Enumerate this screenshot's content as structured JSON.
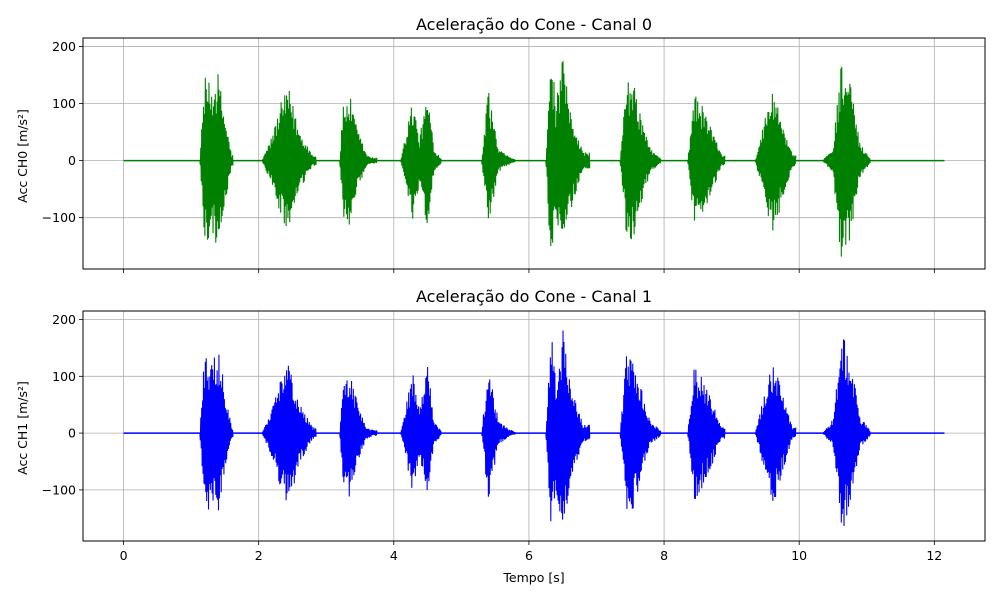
{
  "chart_data": [
    {
      "type": "line",
      "title": "Aceleração do Cone - Canal 0",
      "xlabel": "",
      "ylabel": "Acc CH0 [m/s²]",
      "color": "#008000",
      "grid": true,
      "xlim": [
        -0.6,
        12.75
      ],
      "ylim": [
        -190,
        215
      ],
      "x_ticks": [
        0,
        2,
        4,
        6,
        8,
        10,
        12
      ],
      "y_ticks": [
        -100,
        0,
        100,
        200
      ],
      "y_tick_labels": [
        "−100",
        "0",
        "100",
        "200"
      ],
      "series": [
        {
          "x_range": [
            0,
            12.15
          ],
          "bursts": [
            {
              "start": 1.13,
              "end": 1.62,
              "envelope": [
                [
                  1.13,
                  0
                ],
                [
                  1.2,
                  150
                ],
                [
                  1.3,
                  130
                ],
                [
                  1.4,
                  155
                ],
                [
                  1.5,
                  80
                ],
                [
                  1.6,
                  10
                ]
              ]
            },
            {
              "start": 2.05,
              "end": 2.85,
              "envelope": [
                [
                  2.05,
                  0
                ],
                [
                  2.2,
                  45
                ],
                [
                  2.35,
                  110
                ],
                [
                  2.45,
                  125
                ],
                [
                  2.6,
                  55
                ],
                [
                  2.8,
                  10
                ]
              ]
            },
            {
              "start": 3.2,
              "end": 3.75,
              "envelope": [
                [
                  3.2,
                  0
                ],
                [
                  3.25,
                  100
                ],
                [
                  3.35,
                  115
                ],
                [
                  3.45,
                  60
                ],
                [
                  3.6,
                  10
                ],
                [
                  3.7,
                  5
                ]
              ]
            },
            {
              "start": 4.1,
              "end": 4.7,
              "envelope": [
                [
                  4.1,
                  0
                ],
                [
                  4.28,
                  110
                ],
                [
                  4.38,
                  40
                ],
                [
                  4.5,
                  120
                ],
                [
                  4.6,
                  20
                ],
                [
                  4.7,
                  5
                ]
              ]
            },
            {
              "start": 5.3,
              "end": 5.8,
              "envelope": [
                [
                  5.3,
                  0
                ],
                [
                  5.4,
                  125
                ],
                [
                  5.45,
                  90
                ],
                [
                  5.55,
                  20
                ],
                [
                  5.7,
                  8
                ],
                [
                  5.8,
                  2
                ]
              ]
            },
            {
              "start": 6.25,
              "end": 6.9,
              "envelope": [
                [
                  6.25,
                  0
                ],
                [
                  6.33,
                  195
                ],
                [
                  6.4,
                  100
                ],
                [
                  6.5,
                  180
                ],
                [
                  6.6,
                  95
                ],
                [
                  6.8,
                  15
                ]
              ]
            },
            {
              "start": 7.35,
              "end": 7.95,
              "envelope": [
                [
                  7.35,
                  0
                ],
                [
                  7.45,
                  145
                ],
                [
                  7.55,
                  135
                ],
                [
                  7.7,
                  60
                ],
                [
                  7.8,
                  20
                ],
                [
                  7.95,
                  5
                ]
              ]
            },
            {
              "start": 8.35,
              "end": 8.9,
              "envelope": [
                [
                  8.35,
                  0
                ],
                [
                  8.45,
                  120
                ],
                [
                  8.55,
                  100
                ],
                [
                  8.7,
                  60
                ],
                [
                  8.85,
                  10
                ]
              ]
            },
            {
              "start": 9.35,
              "end": 9.95,
              "envelope": [
                [
                  9.35,
                  0
                ],
                [
                  9.5,
                  80
                ],
                [
                  9.62,
                  130
                ],
                [
                  9.75,
                  70
                ],
                [
                  9.9,
                  10
                ]
              ]
            },
            {
              "start": 10.35,
              "end": 11.05,
              "envelope": [
                [
                  10.35,
                  0
                ],
                [
                  10.5,
                  25
                ],
                [
                  10.63,
                  185
                ],
                [
                  10.75,
                  140
                ],
                [
                  10.9,
                  30
                ],
                [
                  11.05,
                  5
                ]
              ]
            }
          ]
        }
      ]
    },
    {
      "type": "line",
      "title": "Aceleração do Cone - Canal 1",
      "xlabel": "Tempo [s]",
      "ylabel": "Acc CH1 [m/s²]",
      "color": "#0000ff",
      "grid": true,
      "xlim": [
        -0.6,
        12.75
      ],
      "ylim": [
        -190,
        215
      ],
      "x_ticks": [
        0,
        2,
        4,
        6,
        8,
        10,
        12
      ],
      "x_tick_labels": [
        "0",
        "2",
        "4",
        "6",
        "8",
        "10",
        "12"
      ],
      "y_ticks": [
        -100,
        0,
        100,
        200
      ],
      "y_tick_labels": [
        "−100",
        "0",
        "100",
        "200"
      ],
      "series": [
        {
          "x_range": [
            0,
            12.15
          ],
          "bursts": [
            {
              "start": 1.13,
              "end": 1.62,
              "envelope": [
                [
                  1.13,
                  0
                ],
                [
                  1.2,
                  145
                ],
                [
                  1.3,
                  130
                ],
                [
                  1.4,
                  150
                ],
                [
                  1.5,
                  80
                ],
                [
                  1.6,
                  10
                ]
              ]
            },
            {
              "start": 2.05,
              "end": 2.85,
              "envelope": [
                [
                  2.05,
                  0
                ],
                [
                  2.2,
                  45
                ],
                [
                  2.35,
                  110
                ],
                [
                  2.45,
                  125
                ],
                [
                  2.6,
                  55
                ],
                [
                  2.8,
                  10
                ]
              ]
            },
            {
              "start": 3.2,
              "end": 3.75,
              "envelope": [
                [
                  3.2,
                  0
                ],
                [
                  3.25,
                  100
                ],
                [
                  3.35,
                  115
                ],
                [
                  3.45,
                  60
                ],
                [
                  3.6,
                  10
                ],
                [
                  3.7,
                  5
                ]
              ]
            },
            {
              "start": 4.1,
              "end": 4.7,
              "envelope": [
                [
                  4.1,
                  0
                ],
                [
                  4.28,
                  110
                ],
                [
                  4.38,
                  40
                ],
                [
                  4.5,
                  120
                ],
                [
                  4.6,
                  20
                ],
                [
                  4.7,
                  5
                ]
              ]
            },
            {
              "start": 5.3,
              "end": 5.8,
              "envelope": [
                [
                  5.3,
                  0
                ],
                [
                  5.4,
                  125
                ],
                [
                  5.45,
                  90
                ],
                [
                  5.55,
                  20
                ],
                [
                  5.7,
                  8
                ],
                [
                  5.8,
                  2
                ]
              ]
            },
            {
              "start": 6.25,
              "end": 6.9,
              "envelope": [
                [
                  6.25,
                  0
                ],
                [
                  6.33,
                  195
                ],
                [
                  6.4,
                  100
                ],
                [
                  6.5,
                  185
                ],
                [
                  6.6,
                  95
                ],
                [
                  6.8,
                  15
                ]
              ]
            },
            {
              "start": 7.35,
              "end": 7.95,
              "envelope": [
                [
                  7.35,
                  0
                ],
                [
                  7.45,
                  145
                ],
                [
                  7.55,
                  135
                ],
                [
                  7.7,
                  60
                ],
                [
                  7.8,
                  20
                ],
                [
                  7.95,
                  5
                ]
              ]
            },
            {
              "start": 8.35,
              "end": 8.9,
              "envelope": [
                [
                  8.35,
                  0
                ],
                [
                  8.45,
                  120
                ],
                [
                  8.55,
                  100
                ],
                [
                  8.7,
                  60
                ],
                [
                  8.85,
                  10
                ]
              ]
            },
            {
              "start": 9.35,
              "end": 9.95,
              "envelope": [
                [
                  9.35,
                  0
                ],
                [
                  9.5,
                  80
                ],
                [
                  9.62,
                  130
                ],
                [
                  9.75,
                  70
                ],
                [
                  9.9,
                  10
                ]
              ]
            },
            {
              "start": 10.35,
              "end": 11.05,
              "envelope": [
                [
                  10.35,
                  0
                ],
                [
                  10.5,
                  25
                ],
                [
                  10.63,
                  185
                ],
                [
                  10.75,
                  140
                ],
                [
                  10.9,
                  30
                ],
                [
                  11.05,
                  5
                ]
              ]
            }
          ]
        }
      ]
    }
  ]
}
